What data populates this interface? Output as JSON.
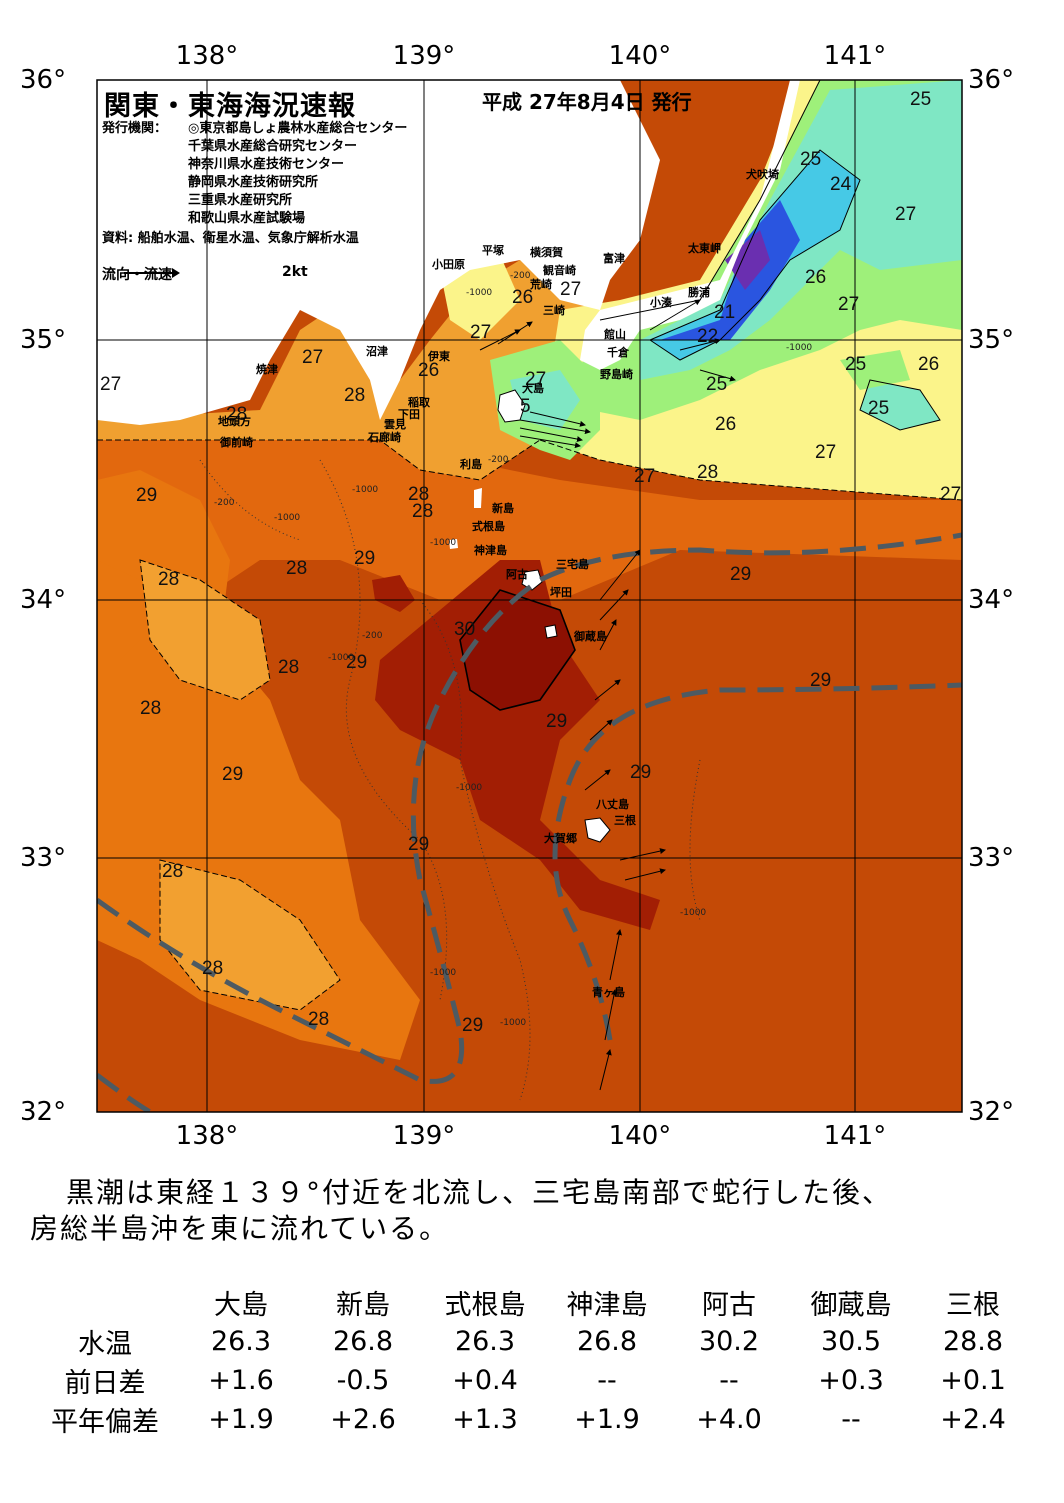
{
  "header": {
    "title": "関東・東海海況速報",
    "date": "平成 27年8月4日 発行",
    "issuer_label": "発行機関：",
    "issuers": [
      "◎東京都島しょ農林水産総合センター",
      "千葉県水産総合研究センター",
      "神奈川県水産技術センター",
      "静岡県水産技術研究所",
      "三重県水産研究所",
      "和歌山県水産試験場"
    ],
    "source": "資料: 船舶水温、衛星水温、気象庁解析水温",
    "legend_label": "流向・流速",
    "legend_speed": "2kt"
  },
  "axes": {
    "lon_labels": [
      "138°",
      "139°",
      "140°",
      "141°"
    ],
    "lat_labels": [
      "36°",
      "35°",
      "34°",
      "33°",
      "32°"
    ],
    "lon_range": [
      137.5,
      141.5
    ],
    "lat_range": [
      32.0,
      36.0
    ]
  },
  "place_names": [
    "犬吠埼",
    "太東岬",
    "勝浦",
    "小湊",
    "館山",
    "千倉",
    "野島崎",
    "富津",
    "横須賀",
    "観音崎",
    "平塚",
    "荒崎",
    "三崎",
    "小田原",
    "沼津",
    "焼津",
    "伊東",
    "稲取",
    "下田",
    "雲見",
    "石廊崎",
    "地頭方",
    "御前崎",
    "大島",
    "利島",
    "新島",
    "式根島",
    "神津島",
    "三宅島",
    "阿古",
    "坪田",
    "御蔵島",
    "八丈島",
    "三根",
    "大賀郷",
    "青ヶ島"
  ],
  "isotherm_labels": [
    "25",
    "25",
    "24",
    "27",
    "21",
    "22",
    "25",
    "26",
    "27",
    "25",
    "26",
    "25",
    "26",
    "27",
    "28",
    "27",
    "26",
    "27",
    "26",
    "27",
    "27",
    "27",
    "28",
    "27",
    "5",
    "28",
    "28",
    "28",
    "29",
    "29",
    "28",
    "28",
    "29",
    "30",
    "29",
    "28",
    "28",
    "29",
    "29",
    "29",
    "29",
    "28",
    "28",
    "28",
    "29",
    "29",
    "27"
  ],
  "depth_labels": [
    "-200",
    "-1000",
    "-200",
    "-200",
    "-1000",
    "-1000",
    "-200",
    "-1000",
    "-1000",
    "-1000",
    "-1000",
    "-1000",
    "-1000",
    "-1000"
  ],
  "colors": {
    "t21": "#6a2fb0",
    "t22": "#2a55e0",
    "t23": "#3b8cf5",
    "t24": "#46c9e6",
    "t25": "#7fe7c4",
    "t26": "#9ef07a",
    "t27": "#fbf48a",
    "t28": "#f0a030",
    "t29": "#e86a10",
    "t29b": "#c84a0a",
    "t30": "#8c1002",
    "kuroshio": "#4d5a62",
    "land": "#ffffff"
  },
  "summary": {
    "line1": "黒潮は東経１３９°付近を北流し、三宅島南部で蛇行した後、",
    "line2": "房総半島沖を東に流れている。"
  },
  "table": {
    "columns": [
      "大島",
      "新島",
      "式根島",
      "神津島",
      "阿古",
      "御蔵島",
      "三根"
    ],
    "rows": [
      {
        "label": "水温",
        "values": [
          "26.3",
          "26.8",
          "26.3",
          "26.8",
          "30.2",
          "30.5",
          "28.8"
        ]
      },
      {
        "label": "前日差",
        "values": [
          "+1.6",
          "-0.5",
          "+0.4",
          "--",
          "--",
          "+0.3",
          "+0.1"
        ]
      },
      {
        "label": "平年偏差",
        "values": [
          "+1.9",
          "+2.6",
          "+1.3",
          "+1.9",
          "+4.0",
          "--",
          "+2.4"
        ]
      }
    ]
  }
}
